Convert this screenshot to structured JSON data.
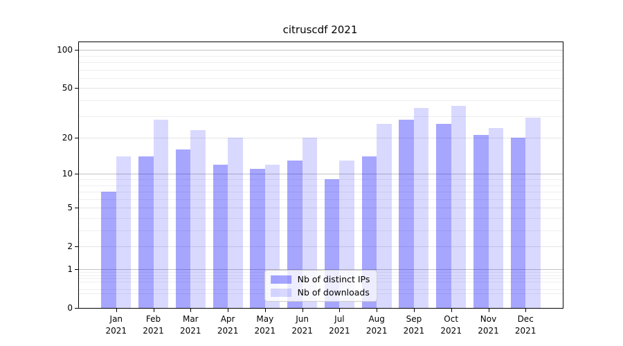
{
  "chart_data": {
    "type": "bar",
    "title": "citruscdf 2021",
    "categories": [
      "Jan 2021",
      "Feb 2021",
      "Mar 2021",
      "Apr 2021",
      "May 2021",
      "Jun 2021",
      "Jul 2021",
      "Aug 2021",
      "Sep 2021",
      "Oct 2021",
      "Nov 2021",
      "Dec 2021"
    ],
    "series": [
      {
        "name": "Nb of distinct IPs",
        "color": "rgba(0,0,255,0.35)",
        "values": [
          7,
          14,
          16,
          12,
          11,
          13,
          9,
          14,
          28,
          26,
          21,
          20
        ]
      },
      {
        "name": "Nb of downloads",
        "color": "rgba(0,0,255,0.15)",
        "values": [
          14,
          28,
          23,
          20,
          12,
          20,
          13,
          26,
          35,
          36,
          24,
          29
        ]
      }
    ],
    "xlabel": "",
    "ylabel": "",
    "yscale": "log1p",
    "ylim": [
      0,
      115
    ],
    "yticks": [
      0,
      1,
      2,
      5,
      10,
      20,
      50,
      100
    ],
    "minor_yticks": [
      0.3,
      0.4,
      0.6,
      0.7,
      0.8,
      0.9,
      3,
      4,
      6,
      7,
      8,
      9,
      30,
      40,
      60,
      70,
      80,
      90
    ],
    "grid": "on",
    "legend_position": "lower center"
  }
}
